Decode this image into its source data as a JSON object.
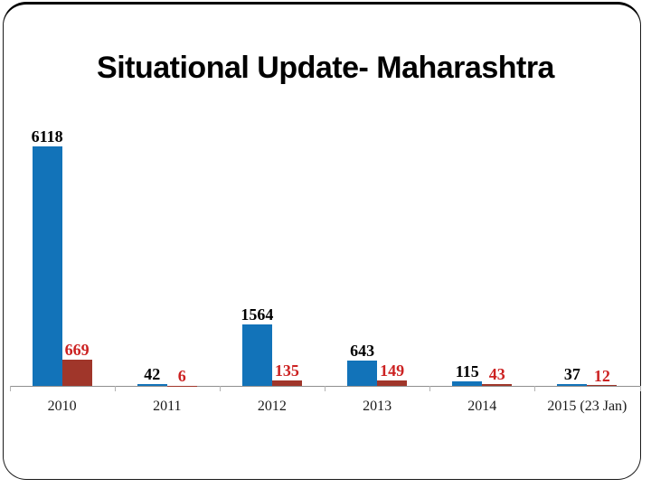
{
  "slide": {
    "title": "Situational Update- Maharashtra",
    "background_color": "#ffffff",
    "border_color": "#000000"
  },
  "chart_data": {
    "type": "bar",
    "title": "",
    "xlabel": "",
    "ylabel": "",
    "categories": [
      "2010",
      "2011",
      "2012",
      "2013",
      "2014",
      "2015 (23 Jan)"
    ],
    "series": [
      {
        "name": "series1",
        "color": "#1273B9",
        "label_color": "#000000",
        "values": [
          6118,
          42,
          1564,
          643,
          115,
          37
        ]
      },
      {
        "name": "series2",
        "color": "#A0362A",
        "label_color": "#CC2222",
        "values": [
          669,
          6,
          135,
          149,
          43,
          12
        ]
      }
    ],
    "data_labels": true,
    "legend": "none",
    "grid": false,
    "y_axis_visible": false,
    "ylim": [
      0,
      6500
    ],
    "axis_color": "#8f8f8f",
    "tick_color": "#b3b3b3"
  }
}
